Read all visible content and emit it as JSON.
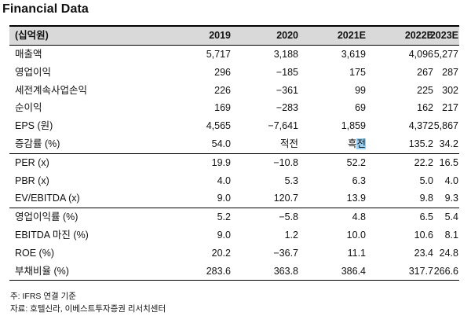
{
  "title": "Financial Data",
  "table": {
    "headers": [
      "(십억원)",
      "2019",
      "2020",
      "2021E",
      "2022E",
      "2023E"
    ],
    "rows": [
      {
        "label": "매출액",
        "values": [
          "5,717",
          "3,188",
          "3,619",
          "4,096",
          "5,277"
        ]
      },
      {
        "label": "영업이익",
        "values": [
          "296",
          "−185",
          "175",
          "267",
          "287"
        ]
      },
      {
        "label": "세전계속사업손익",
        "values": [
          "226",
          "−361",
          "99",
          "225",
          "302"
        ]
      },
      {
        "label": "순이익",
        "values": [
          "169",
          "−283",
          "69",
          "162",
          "217"
        ]
      },
      {
        "label": "EPS (원)",
        "values": [
          "4,565",
          "−7,641",
          "1,859",
          "4,372",
          "5,867"
        ]
      },
      {
        "label": "증감률 (%)",
        "values": [
          "54.0",
          "적전",
          "흑전",
          "135.2",
          "34.2"
        ]
      },
      {
        "label": "PER (x)",
        "values": [
          "19.9",
          "−10.8",
          "52.2",
          "22.2",
          "16.5"
        ]
      },
      {
        "label": "PBR (x)",
        "values": [
          "4.0",
          "5.3",
          "6.3",
          "5.0",
          "4.0"
        ]
      },
      {
        "label": "EV/EBITDA (x)",
        "values": [
          "9.0",
          "120.7",
          "13.9",
          "9.8",
          "9.3"
        ]
      },
      {
        "label": "영업이익률 (%)",
        "values": [
          "5.2",
          "−5.8",
          "4.8",
          "6.5",
          "5.4"
        ]
      },
      {
        "label": "EBITDA 마진 (%)",
        "values": [
          "9.0",
          "1.2",
          "10.0",
          "10.6",
          "8.1"
        ]
      },
      {
        "label": "ROE (%)",
        "values": [
          "20.2",
          "−36.7",
          "11.1",
          "23.4",
          "24.8"
        ]
      },
      {
        "label": "부채비율 (%)",
        "values": [
          "283.6",
          "363.8",
          "386.4",
          "317.7",
          "266.6"
        ]
      }
    ]
  },
  "notes": {
    "note": "주: IFRS 연결 기준",
    "source": "자료: 호텔신라, 이베스트투자증권 리서치센터"
  },
  "colors": {
    "header_bg": "#d9d9d9",
    "highlight": "#9bd3f5"
  }
}
